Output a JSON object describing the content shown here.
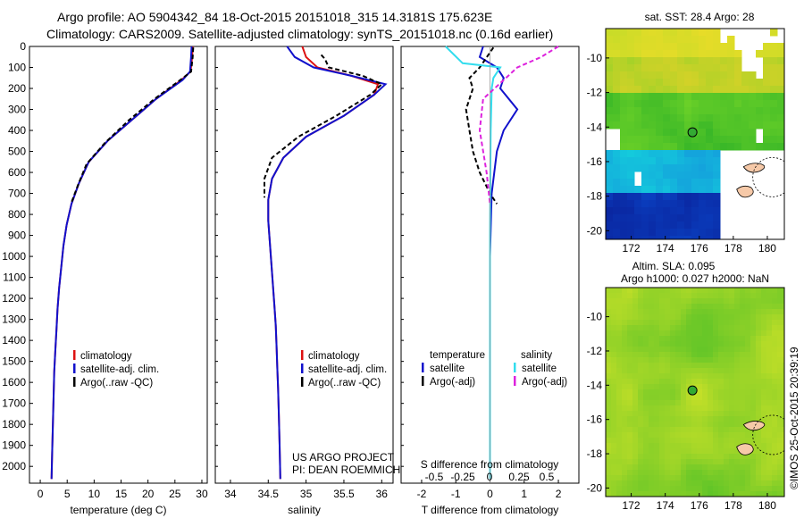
{
  "header": {
    "line1": "Argo profile: AO 5904342_84 18-Oct-2015 20151018_315 14.3181S 175.623E",
    "line2": "Climatology: CARS2009. Satellite-adjusted climatology: synTS_20151018.nc (0.16d earlier)"
  },
  "colors": {
    "climatology": "#dd1111",
    "satellite": "#1111cc",
    "argo": "#000000",
    "salinity_satellite": "#33ddee",
    "salinity_argo": "#dd22dd",
    "float_marker": "#33aa33",
    "land": "#f6c9a8"
  },
  "chart_data": [
    {
      "type": "line",
      "name": "temperature-profile",
      "xlabel": "temperature (deg C)",
      "ylabel": "",
      "xlim": [
        -2,
        31
      ],
      "ylim": [
        2080,
        0
      ],
      "xticks": [
        0,
        5,
        10,
        15,
        20,
        25,
        30
      ],
      "yticks": [
        0,
        100,
        200,
        300,
        400,
        500,
        600,
        700,
        800,
        900,
        1000,
        1100,
        1200,
        1300,
        1400,
        1500,
        1600,
        1700,
        1800,
        1900,
        2000
      ],
      "legend": [
        "climatology",
        "satellite-adj. clim.",
        "Argo(..raw -QC)"
      ],
      "series": [
        {
          "name": "climatology",
          "x": [
            28.3,
            28.2,
            27.9,
            26.2,
            21.5,
            17.0,
            12.5,
            9.0,
            7.2,
            5.8,
            4.9,
            4.3,
            3.9,
            3.5,
            3.2,
            3.0,
            2.8,
            2.6,
            2.5,
            2.4,
            2.3,
            2.2,
            2.1
          ],
          "y": [
            0,
            50,
            120,
            160,
            250,
            350,
            450,
            550,
            650,
            750,
            850,
            950,
            1050,
            1150,
            1250,
            1350,
            1450,
            1550,
            1650,
            1750,
            1850,
            1950,
            2060
          ]
        },
        {
          "name": "satellite",
          "x": [
            28.1,
            28.0,
            27.8,
            26.4,
            21.5,
            17.0,
            12.5,
            9.0,
            7.2,
            5.8,
            4.9,
            4.3,
            3.9,
            3.5,
            3.2,
            3.0,
            2.8,
            2.6,
            2.5,
            2.4,
            2.3,
            2.2,
            2.1
          ],
          "y": [
            0,
            50,
            120,
            160,
            250,
            350,
            450,
            550,
            650,
            750,
            850,
            950,
            1050,
            1150,
            1250,
            1350,
            1450,
            1550,
            1650,
            1750,
            1850,
            1950,
            2060
          ]
        },
        {
          "name": "argo",
          "x": [
            28.4,
            28.3,
            28.0,
            26.0,
            21.2,
            16.5,
            12.0,
            8.6,
            7.0,
            5.7
          ],
          "y": [
            5,
            50,
            120,
            160,
            250,
            350,
            460,
            560,
            660,
            750
          ]
        }
      ]
    },
    {
      "type": "line",
      "name": "salinity-profile",
      "xlabel": "salinity",
      "ylabel": "",
      "xlim": [
        33.8,
        36.15
      ],
      "ylim": [
        2080,
        0
      ],
      "xticks": [
        34,
        34.5,
        35,
        35.5,
        36
      ],
      "legend": [
        "climatology",
        "satellite-adj. clim.",
        "Argo(..raw -QC)"
      ],
      "series": [
        {
          "name": "climatology",
          "x": [
            34.95,
            35.0,
            35.15,
            35.6,
            35.95,
            35.9,
            35.5,
            35.0,
            34.7,
            34.55,
            34.5,
            34.5,
            34.52,
            34.54,
            34.56,
            34.58,
            34.6,
            34.61,
            34.62,
            34.63,
            34.64,
            34.65,
            34.66
          ],
          "y": [
            0,
            50,
            100,
            140,
            180,
            230,
            330,
            430,
            530,
            630,
            730,
            830,
            930,
            1030,
            1130,
            1230,
            1330,
            1430,
            1530,
            1630,
            1750,
            1900,
            2060
          ]
        },
        {
          "name": "satellite",
          "x": [
            34.75,
            34.85,
            35.1,
            35.6,
            36.05,
            35.9,
            35.5,
            35.0,
            34.7,
            34.55,
            34.5,
            34.5,
            34.52,
            34.54,
            34.56,
            34.58,
            34.6,
            34.61,
            34.62,
            34.63,
            34.64,
            34.65,
            34.66
          ],
          "y": [
            0,
            50,
            100,
            140,
            180,
            230,
            330,
            430,
            530,
            630,
            730,
            830,
            930,
            1030,
            1130,
            1230,
            1330,
            1430,
            1530,
            1630,
            1750,
            1900,
            2060
          ]
        },
        {
          "name": "argo",
          "x": [
            35.2,
            35.25,
            35.3,
            35.75,
            36.0,
            35.85,
            35.4,
            34.9,
            34.55,
            34.45,
            34.45
          ],
          "y": [
            40,
            60,
            100,
            140,
            180,
            230,
            330,
            430,
            530,
            630,
            720
          ]
        }
      ],
      "annotations": [
        "US ARGO PROJECT",
        "PI: DEAN ROEMMICH"
      ]
    },
    {
      "type": "line",
      "name": "difference-profile",
      "xlabel": "T difference from climatology",
      "x2label": "S difference from climatology",
      "xlim": [
        -2.6,
        2.6
      ],
      "ylim": [
        2080,
        0
      ],
      "xticks": [
        -2,
        -1,
        0,
        1,
        2
      ],
      "x2ticks": [
        -0.5,
        -0.25,
        0,
        0.25,
        0.5
      ],
      "legend_temperature_title": "temperature",
      "legend_salinity_title": "salinity",
      "legend": [
        "satellite",
        "Argo(-adj)",
        "satellite",
        "Argo(-adj)"
      ],
      "series": [
        {
          "name": "T satellite",
          "x": [
            -0.2,
            -0.3,
            0.2,
            0.4,
            0.3,
            0.8,
            0.4,
            0.2,
            0.05,
            0,
            0,
            0
          ],
          "y": [
            0,
            50,
            100,
            150,
            200,
            300,
            400,
            500,
            700,
            1000,
            1500,
            2060
          ]
        },
        {
          "name": "T Argo",
          "x": [
            0.1,
            -0.3,
            -0.6,
            -0.5,
            -0.7,
            -0.6,
            -0.5,
            -0.3,
            0,
            0.2
          ],
          "y": [
            5,
            100,
            150,
            200,
            300,
            400,
            500,
            600,
            700,
            750
          ]
        },
        {
          "name": "S satellite",
          "x": [
            -1.3,
            -0.8,
            0.3,
            0.1,
            0.05,
            0.02,
            0.01,
            0,
            0,
            0
          ],
          "y": [
            0,
            80,
            100,
            150,
            200,
            400,
            600,
            900,
            1500,
            2060
          ]
        },
        {
          "name": "S Argo",
          "x": [
            2.0,
            1.5,
            0.8,
            -0.2,
            -0.3,
            -0.1,
            0.0
          ],
          "y": [
            0,
            50,
            100,
            250,
            400,
            600,
            750
          ]
        }
      ]
    },
    {
      "type": "heatmap",
      "name": "sst-map",
      "title": "sat. SST: 28.4  Argo: 28",
      "xticks": [
        172,
        174,
        176,
        178,
        180
      ],
      "yticks": [
        -10,
        -12,
        -14,
        -16,
        -18,
        -20
      ],
      "xlim": [
        170.5,
        181
      ],
      "ylim": [
        -20.5,
        -8.3
      ],
      "float_position": [
        175.6,
        -14.3
      ]
    },
    {
      "type": "heatmap",
      "name": "sla-map",
      "title1": "Altim. SLA: 0.095",
      "title2": "Argo h1000: 0.027  h2000: NaN",
      "xticks": [
        172,
        174,
        176,
        178,
        180
      ],
      "yticks": [
        -10,
        -12,
        -14,
        -16,
        -18,
        -20
      ],
      "xlim": [
        170.5,
        181
      ],
      "ylim": [
        -20.5,
        -8.3
      ],
      "float_position": [
        175.6,
        -14.3
      ]
    }
  ],
  "watermark": "©IMOS 25-Oct-2015 20:39:19"
}
